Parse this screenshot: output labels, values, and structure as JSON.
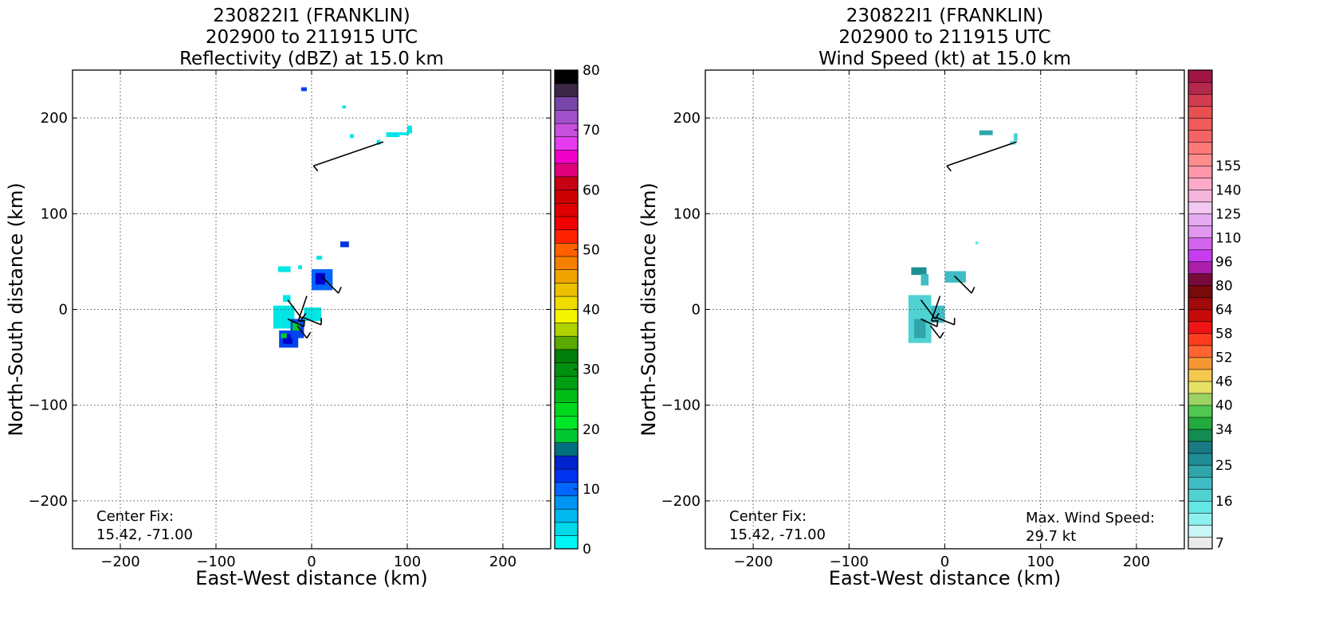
{
  "chart_data": [
    {
      "type": "heatmap",
      "title": [
        "230822I1 (FRANKLIN)",
        "202900 to 211915 UTC",
        "Reflectivity (dBZ) at 15.0 km"
      ],
      "xlabel": "East-West distance (km)",
      "ylabel": "North-South distance (km)",
      "xlim": [
        -250,
        250
      ],
      "ylim": [
        -250,
        250
      ],
      "xticks": [
        -200,
        -100,
        0,
        100,
        200
      ],
      "yticks": [
        -200,
        -100,
        0,
        100,
        200
      ],
      "xtick_labels": [
        "−200",
        "−100",
        "0",
        "100",
        "200"
      ],
      "ytick_labels": [
        "−200",
        "−100",
        "0",
        "100",
        "200"
      ],
      "grid": true,
      "annotation": [
        "Center Fix:",
        "15.42, -71.00"
      ],
      "colorbar": {
        "ticks": [
          0,
          10,
          20,
          30,
          40,
          50,
          60,
          70,
          80
        ],
        "tick_labels": [
          "0",
          "10",
          "20",
          "30",
          "40",
          "50",
          "60",
          "70",
          "80"
        ],
        "colors": [
          "#00f5f5",
          "#00d8ea",
          "#00b8ee",
          "#0094f2",
          "#0066ff",
          "#0033f0",
          "#0022cc",
          "#007080",
          "#00c832",
          "#00e628",
          "#00d81c",
          "#00bc16",
          "#009e12",
          "#008f0e",
          "#007d0a",
          "#5aa800",
          "#b0d200",
          "#f5f500",
          "#f0dc00",
          "#ecc000",
          "#f0a400",
          "#f58000",
          "#ff6000",
          "#ff2200",
          "#f00000",
          "#dc0000",
          "#cc0000",
          "#c80014",
          "#e0007a",
          "#f000c8",
          "#e63cf0",
          "#c850dc",
          "#a050c8",
          "#7846aa",
          "#3c2846",
          "#000000"
        ]
      },
      "cells": [
        [
          -11,
          228,
          6,
          4,
          "#0044ee"
        ],
        [
          32,
          210,
          4,
          3,
          "#00e6e6"
        ],
        [
          40,
          179,
          4,
          4,
          "#00e6e6"
        ],
        [
          68,
          172,
          4,
          5,
          "#00e6e6"
        ],
        [
          78,
          180,
          14,
          5,
          "#00e6e6"
        ],
        [
          92,
          182,
          10,
          3,
          "#00e6e6"
        ],
        [
          100,
          184,
          5,
          8,
          "#00e6e6"
        ],
        [
          30,
          65,
          9,
          6,
          "#0033dd"
        ],
        [
          -35,
          39,
          13,
          6,
          "#00e6e6"
        ],
        [
          -14,
          42,
          4,
          4,
          "#00e6e6"
        ],
        [
          5,
          52,
          6,
          4,
          "#00e6e6"
        ],
        [
          0,
          20,
          22,
          22,
          "#0066ff"
        ],
        [
          4,
          26,
          10,
          12,
          "#0000cc"
        ],
        [
          -30,
          8,
          8,
          7,
          "#00e6e6"
        ],
        [
          -40,
          -20,
          22,
          24,
          "#00e6e6"
        ],
        [
          -8,
          -12,
          18,
          14,
          "#00e6e6"
        ],
        [
          -34,
          -40,
          20,
          18,
          "#0044ee"
        ],
        [
          -30,
          -36,
          10,
          10,
          "#0000cc"
        ],
        [
          -22,
          -30,
          14,
          20,
          "#0044ee"
        ],
        [
          -20,
          -22,
          8,
          8,
          "#00cc33"
        ],
        [
          -32,
          -30,
          6,
          5,
          "#00cc33"
        ]
      ],
      "barbs": [
        [
          75,
          175,
          2,
          150
        ],
        [
          10,
          35,
          28,
          17
        ],
        [
          -25,
          10,
          -10,
          -10
        ],
        [
          -5,
          14,
          -14,
          -12
        ],
        [
          -25,
          -10,
          -8,
          -18
        ],
        [
          -10,
          -8,
          10,
          -16
        ],
        [
          -15,
          -17,
          -5,
          -30
        ]
      ]
    },
    {
      "type": "heatmap",
      "title": [
        "230822I1 (FRANKLIN)",
        "202900 to 211915 UTC",
        "Wind Speed (kt) at 15.0 km"
      ],
      "xlabel": "East-West distance (km)",
      "ylabel": "North-South distance (km)",
      "xlim": [
        -250,
        250
      ],
      "ylim": [
        -250,
        250
      ],
      "xticks": [
        -200,
        -100,
        0,
        100,
        200
      ],
      "yticks": [
        -200,
        -100,
        0,
        100,
        200
      ],
      "xtick_labels": [
        "−200",
        "−100",
        "0",
        "100",
        "200"
      ],
      "ytick_labels": [
        "−200",
        "−100",
        "0",
        "100",
        "200"
      ],
      "grid": true,
      "annotation": [
        "Center Fix:",
        "15.42, -71.00"
      ],
      "annotation_right": [
        "Max. Wind Speed:",
        "29.7 kt"
      ],
      "colorbar": {
        "tick_labels": [
          "7",
          "16",
          "25",
          "34",
          "40",
          "46",
          "52",
          "58",
          "64",
          "80",
          "96",
          "110",
          "125",
          "140",
          "155"
        ],
        "tick_levels": [
          0.5,
          4,
          7,
          10,
          12,
          14,
          16,
          18,
          20,
          22,
          24,
          26,
          28,
          30,
          32
        ],
        "colors": [
          "#eaeaea",
          "#c8f5f5",
          "#8cf0f0",
          "#64e6e6",
          "#50d2d2",
          "#40bcc4",
          "#30a6ac",
          "#208e96",
          "#1a7a84",
          "#128c50",
          "#22aa3c",
          "#50c850",
          "#9ad264",
          "#e6e064",
          "#f5c850",
          "#f59632",
          "#ff6432",
          "#ff3c1e",
          "#f01414",
          "#c80a0a",
          "#a00a0a",
          "#780a0a",
          "#780a3c",
          "#aa1eaa",
          "#c83cf0",
          "#d264f0",
          "#e196f0",
          "#e6aaf0",
          "#f0c8f0",
          "#f5b4dc",
          "#ffaac8",
          "#ff96aa",
          "#ff8c8c",
          "#ff7878",
          "#f56464",
          "#f05a5a",
          "#e65050",
          "#d23c50",
          "#b4284b",
          "#a01446"
        ]
      },
      "cells": [
        [
          36,
          182,
          14,
          5,
          "#30a6ac"
        ],
        [
          68,
          172,
          6,
          4,
          "#64e6e6"
        ],
        [
          72,
          176,
          4,
          8,
          "#50d2d2"
        ],
        [
          32,
          68,
          3,
          3,
          "#64e6e6"
        ],
        [
          -35,
          36,
          16,
          8,
          "#208e96"
        ],
        [
          -25,
          25,
          8,
          12,
          "#40bcc4"
        ],
        [
          0,
          28,
          22,
          12,
          "#40bcc4"
        ],
        [
          -38,
          -35,
          24,
          50,
          "#50d2d2"
        ],
        [
          -32,
          -30,
          12,
          20,
          "#30a6ac"
        ],
        [
          -14,
          -14,
          14,
          18,
          "#40bcc4"
        ]
      ],
      "barbs": [
        [
          75,
          175,
          2,
          150
        ],
        [
          10,
          35,
          28,
          17
        ],
        [
          -25,
          10,
          -10,
          -10
        ],
        [
          -5,
          14,
          -14,
          -12
        ],
        [
          -25,
          -10,
          -8,
          -18
        ],
        [
          -10,
          -8,
          10,
          -16
        ],
        [
          -15,
          -17,
          -5,
          -30
        ]
      ]
    }
  ]
}
